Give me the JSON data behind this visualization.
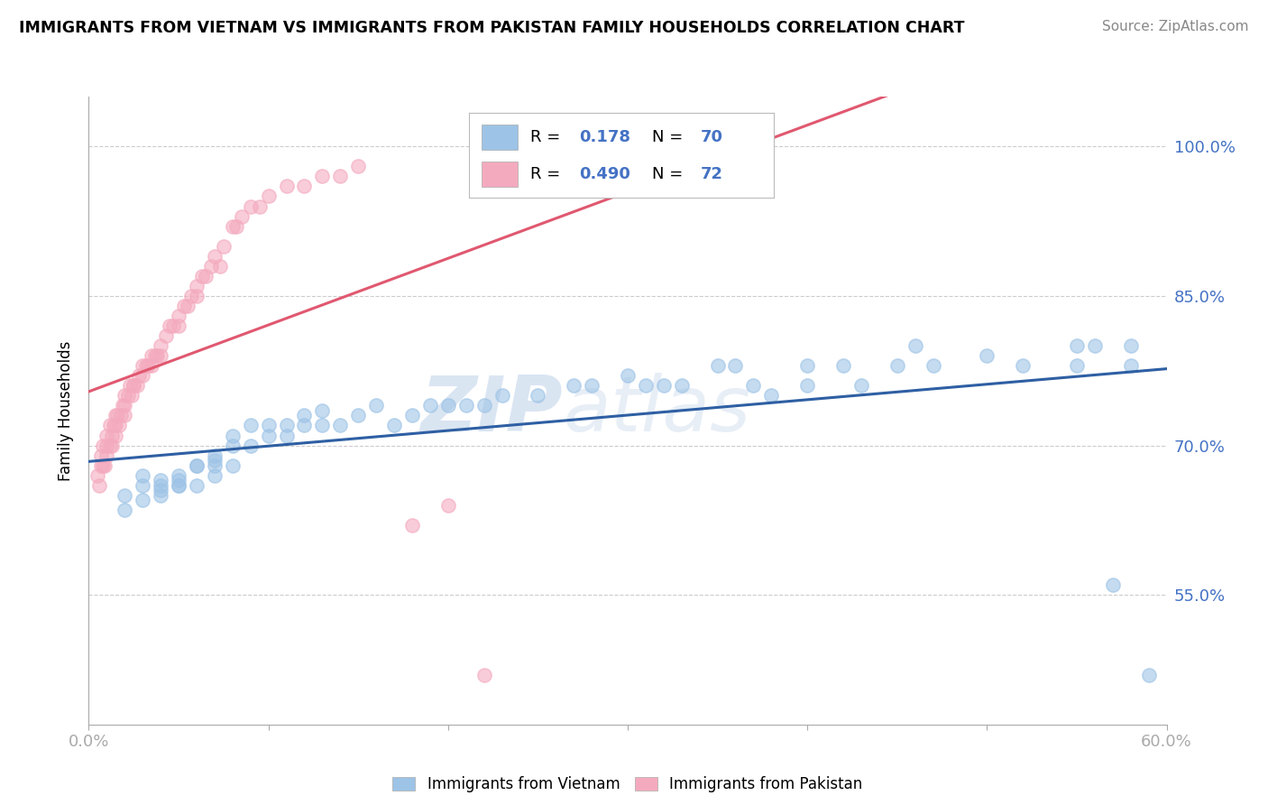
{
  "title": "IMMIGRANTS FROM VIETNAM VS IMMIGRANTS FROM PAKISTAN FAMILY HOUSEHOLDS CORRELATION CHART",
  "source": "Source: ZipAtlas.com",
  "ylabel": "Family Households",
  "yticks": [
    "55.0%",
    "70.0%",
    "85.0%",
    "100.0%"
  ],
  "ytick_vals": [
    0.55,
    0.7,
    0.85,
    1.0
  ],
  "xlim": [
    0.0,
    0.6
  ],
  "ylim": [
    0.42,
    1.05
  ],
  "R_vietnam": 0.178,
  "N_vietnam": 70,
  "R_pakistan": 0.49,
  "N_pakistan": 72,
  "color_vietnam": "#9DC3E6",
  "color_pakistan": "#F4AABE",
  "line_color_vietnam": "#2E5FA3",
  "line_color_pakistan": "#E05870",
  "watermark_zip": "ZIP",
  "watermark_atlas": "atlas",
  "vietnam_x": [
    0.02,
    0.02,
    0.03,
    0.03,
    0.03,
    0.04,
    0.04,
    0.04,
    0.04,
    0.05,
    0.05,
    0.05,
    0.05,
    0.06,
    0.06,
    0.06,
    0.07,
    0.07,
    0.07,
    0.07,
    0.08,
    0.08,
    0.08,
    0.09,
    0.09,
    0.1,
    0.1,
    0.11,
    0.11,
    0.12,
    0.12,
    0.13,
    0.13,
    0.14,
    0.15,
    0.16,
    0.17,
    0.18,
    0.19,
    0.2,
    0.21,
    0.22,
    0.23,
    0.25,
    0.27,
    0.28,
    0.3,
    0.31,
    0.32,
    0.33,
    0.35,
    0.36,
    0.37,
    0.38,
    0.4,
    0.4,
    0.42,
    0.43,
    0.45,
    0.46,
    0.47,
    0.5,
    0.52,
    0.55,
    0.56,
    0.57,
    0.58,
    0.58,
    0.59,
    0.55
  ],
  "vietnam_y": [
    0.635,
    0.65,
    0.66,
    0.645,
    0.67,
    0.655,
    0.66,
    0.65,
    0.665,
    0.66,
    0.66,
    0.67,
    0.665,
    0.68,
    0.66,
    0.68,
    0.68,
    0.67,
    0.685,
    0.69,
    0.68,
    0.7,
    0.71,
    0.7,
    0.72,
    0.71,
    0.72,
    0.71,
    0.72,
    0.72,
    0.73,
    0.72,
    0.735,
    0.72,
    0.73,
    0.74,
    0.72,
    0.73,
    0.74,
    0.74,
    0.74,
    0.74,
    0.75,
    0.75,
    0.76,
    0.76,
    0.77,
    0.76,
    0.76,
    0.76,
    0.78,
    0.78,
    0.76,
    0.75,
    0.78,
    0.76,
    0.78,
    0.76,
    0.78,
    0.8,
    0.78,
    0.79,
    0.78,
    0.78,
    0.8,
    0.56,
    0.78,
    0.8,
    0.47,
    0.8
  ],
  "pakistan_x": [
    0.005,
    0.006,
    0.007,
    0.007,
    0.008,
    0.008,
    0.009,
    0.01,
    0.01,
    0.01,
    0.012,
    0.012,
    0.013,
    0.013,
    0.014,
    0.015,
    0.015,
    0.015,
    0.016,
    0.017,
    0.018,
    0.019,
    0.02,
    0.02,
    0.02,
    0.022,
    0.023,
    0.024,
    0.025,
    0.025,
    0.027,
    0.028,
    0.03,
    0.03,
    0.032,
    0.033,
    0.035,
    0.035,
    0.037,
    0.038,
    0.04,
    0.04,
    0.043,
    0.045,
    0.047,
    0.05,
    0.05,
    0.053,
    0.055,
    0.057,
    0.06,
    0.06,
    0.063,
    0.065,
    0.068,
    0.07,
    0.073,
    0.075,
    0.08,
    0.082,
    0.085,
    0.09,
    0.095,
    0.1,
    0.11,
    0.12,
    0.13,
    0.14,
    0.15,
    0.18,
    0.2,
    0.22
  ],
  "pakistan_y": [
    0.67,
    0.66,
    0.68,
    0.69,
    0.68,
    0.7,
    0.68,
    0.69,
    0.7,
    0.71,
    0.7,
    0.72,
    0.71,
    0.7,
    0.72,
    0.72,
    0.73,
    0.71,
    0.73,
    0.72,
    0.73,
    0.74,
    0.74,
    0.73,
    0.75,
    0.75,
    0.76,
    0.75,
    0.76,
    0.76,
    0.76,
    0.77,
    0.78,
    0.77,
    0.78,
    0.78,
    0.79,
    0.78,
    0.79,
    0.79,
    0.8,
    0.79,
    0.81,
    0.82,
    0.82,
    0.82,
    0.83,
    0.84,
    0.84,
    0.85,
    0.86,
    0.85,
    0.87,
    0.87,
    0.88,
    0.89,
    0.88,
    0.9,
    0.92,
    0.92,
    0.93,
    0.94,
    0.94,
    0.95,
    0.96,
    0.96,
    0.97,
    0.97,
    0.98,
    0.62,
    0.64,
    0.47
  ]
}
